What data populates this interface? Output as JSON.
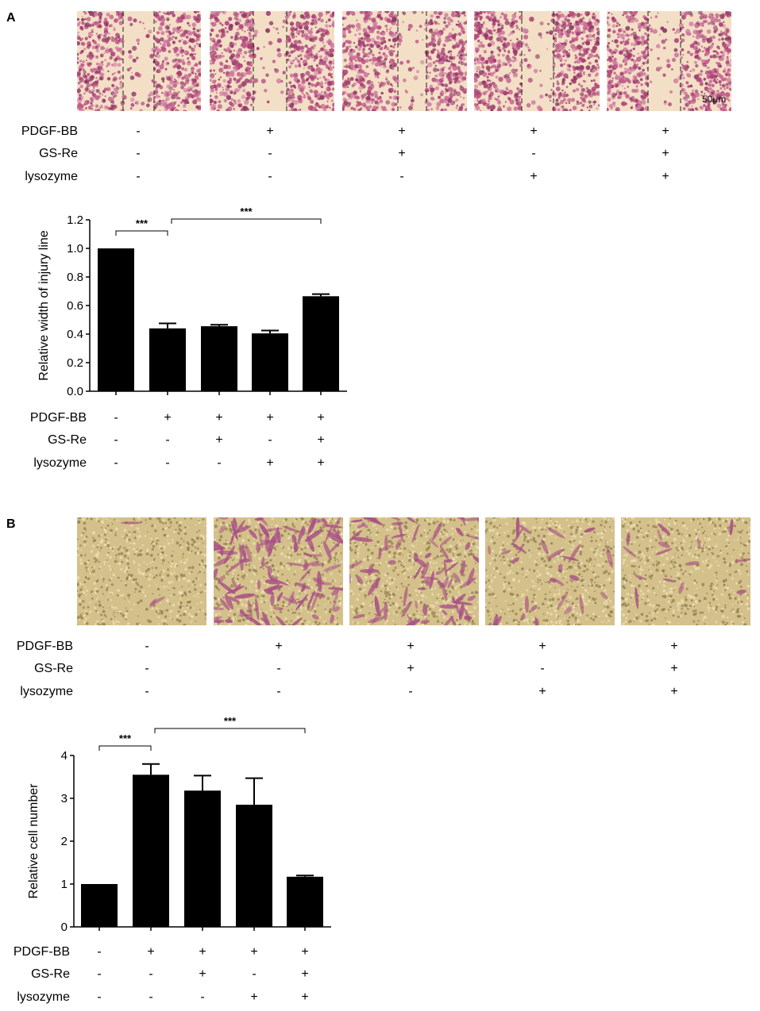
{
  "panelA": {
    "letter": "A",
    "scale_bar": "50μm",
    "rows": [
      {
        "label": "PDGF-BB",
        "signs": [
          "-",
          "+",
          "+",
          "+",
          "+"
        ]
      },
      {
        "label": "GS-Re",
        "signs": [
          "-",
          "-",
          "+",
          "-",
          "+"
        ]
      },
      {
        "label": "lysozyme",
        "signs": [
          "-",
          "-",
          "-",
          "+",
          "+"
        ]
      }
    ],
    "chart_data": {
      "type": "bar",
      "ylabel": "Relative width of injury line",
      "ylim": [
        0,
        1.2
      ],
      "yticks": [
        "0.0",
        "0.2",
        "0.4",
        "0.6",
        "0.8",
        "1.0",
        "1.2"
      ],
      "values": [
        1.0,
        0.44,
        0.455,
        0.405,
        0.665
      ],
      "errors": [
        0,
        0.035,
        0.01,
        0.02,
        0.015
      ],
      "significance": [
        {
          "from": 0,
          "to": 1,
          "label": "***"
        },
        {
          "from": 1,
          "to": 4,
          "label": "***"
        }
      ],
      "rows": [
        {
          "label": "PDGF-BB",
          "signs": [
            "-",
            "+",
            "+",
            "+",
            "+"
          ]
        },
        {
          "label": "GS-Re",
          "signs": [
            "-",
            "-",
            "+",
            "-",
            "+"
          ]
        },
        {
          "label": "lysozyme",
          "signs": [
            "-",
            "-",
            "-",
            "+",
            "+"
          ]
        }
      ]
    }
  },
  "panelB": {
    "letter": "B",
    "rows": [
      {
        "label": "PDGF-BB",
        "signs": [
          "-",
          "+",
          "+",
          "+",
          "+"
        ]
      },
      {
        "label": "GS-Re",
        "signs": [
          "-",
          "-",
          "+",
          "-",
          "+"
        ]
      },
      {
        "label": "lysozyme",
        "signs": [
          "-",
          "-",
          "-",
          "+",
          "+"
        ]
      }
    ],
    "chart_data": {
      "type": "bar",
      "ylabel": "Relative cell number",
      "ylim": [
        0,
        4
      ],
      "yticks": [
        "0",
        "1",
        "2",
        "3",
        "4"
      ],
      "values": [
        1.0,
        3.55,
        3.18,
        2.85,
        1.17
      ],
      "errors": [
        0,
        0.25,
        0.35,
        0.62,
        0.03
      ],
      "significance": [
        {
          "from": 0,
          "to": 1,
          "label": "***"
        },
        {
          "from": 1,
          "to": 4,
          "label": "***"
        }
      ],
      "rows": [
        {
          "label": "PDGF-BB",
          "signs": [
            "-",
            "+",
            "+",
            "+",
            "+"
          ]
        },
        {
          "label": "GS-Re",
          "signs": [
            "-",
            "-",
            "+",
            "-",
            "+"
          ]
        },
        {
          "label": "lysozyme",
          "signs": [
            "-",
            "-",
            "-",
            "+",
            "+"
          ]
        }
      ]
    }
  },
  "colors": {
    "stain_purple": "#b5497f",
    "background_beige": "#f2dcc0",
    "transwell_tan": "#c9b47a",
    "bar": "#000000"
  }
}
